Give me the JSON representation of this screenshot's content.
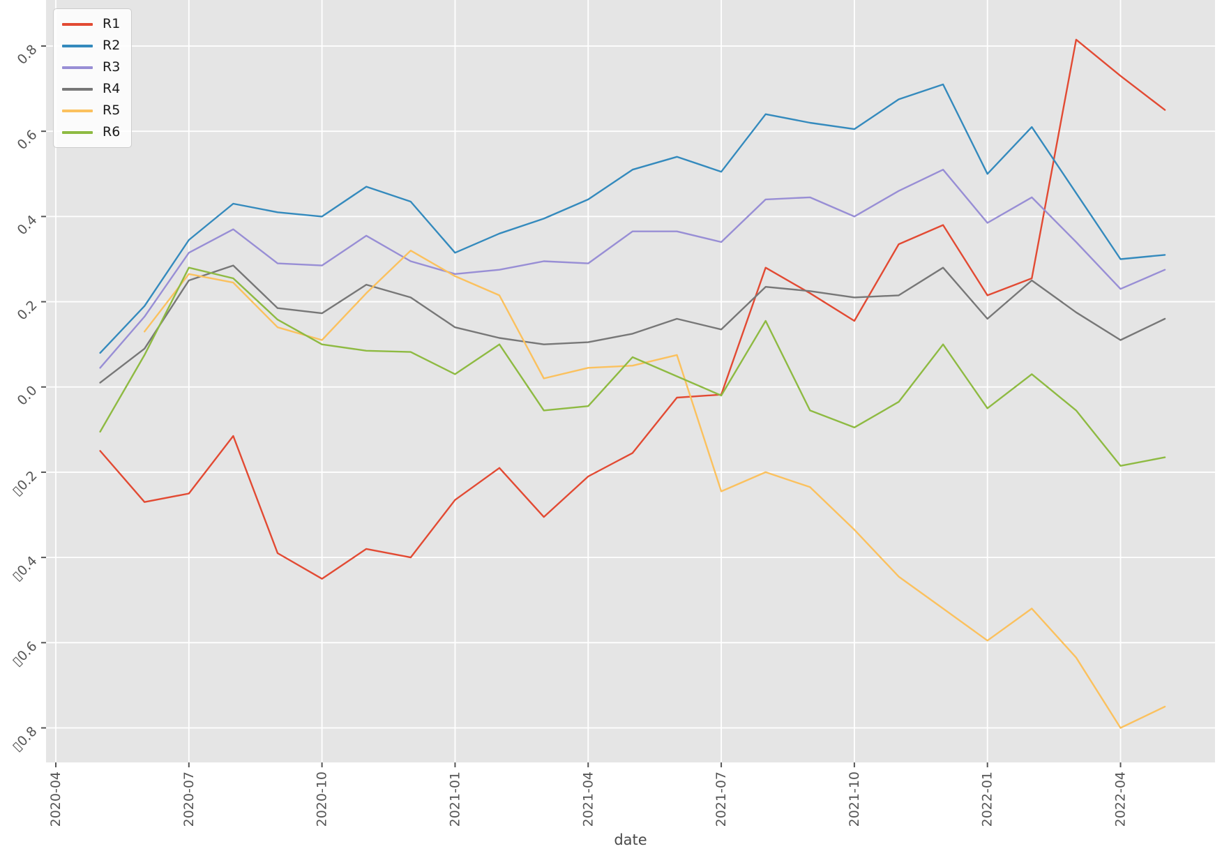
{
  "chart_data": {
    "type": "line",
    "title": "",
    "xlabel": "date",
    "ylabel": "",
    "grid": true,
    "legend_position": "upper left",
    "plot_background": "#E5E5E5",
    "gridline_color": "#FFFFFF",
    "tick_color": "#555555",
    "x": [
      "2020-05",
      "2020-06",
      "2020-07",
      "2020-08",
      "2020-09",
      "2020-10",
      "2020-11",
      "2020-12",
      "2021-01",
      "2021-02",
      "2021-03",
      "2021-04",
      "2021-05",
      "2021-06",
      "2021-07",
      "2021-08",
      "2021-09",
      "2021-10",
      "2021-11",
      "2021-12",
      "2022-01",
      "2022-02",
      "2022-03",
      "2022-04",
      "2022-05"
    ],
    "x_tick_labels": [
      "2020-04",
      "2020-07",
      "2020-10",
      "2021-01",
      "2021-04",
      "2021-07",
      "2021-10",
      "2022-01",
      "2022-04"
    ],
    "x_tick_month_index": [
      0,
      3,
      6,
      9,
      12,
      15,
      18,
      21,
      24
    ],
    "y_tick_values": [
      0.8,
      0.6,
      0.4,
      0.2,
      0.0,
      -0.2,
      -0.4,
      -0.6,
      -0.8
    ],
    "y_tick_labels": [
      "0.8",
      "0.6",
      "0.4",
      "0.2",
      "0.0",
      "▯0.2",
      "▯0.4",
      "▯0.6",
      "▯0.8"
    ],
    "ylim": [
      -0.881,
      0.908
    ],
    "series": [
      {
        "name": "R1",
        "color": "#E24A33",
        "values": [
          -0.15,
          -0.27,
          -0.25,
          -0.115,
          -0.39,
          -0.45,
          -0.38,
          -0.4,
          -0.265,
          -0.19,
          -0.305,
          -0.21,
          -0.155,
          -0.025,
          -0.018,
          0.28,
          0.22,
          0.155,
          0.335,
          0.38,
          0.215,
          0.255,
          0.815,
          0.73,
          0.65
        ]
      },
      {
        "name": "R2",
        "color": "#348ABD",
        "values": [
          0.08,
          0.19,
          0.345,
          0.43,
          0.41,
          0.4,
          0.47,
          0.435,
          0.315,
          0.36,
          0.395,
          0.44,
          0.51,
          0.54,
          0.505,
          0.64,
          0.62,
          0.605,
          0.675,
          0.71,
          0.5,
          0.61,
          0.455,
          0.3,
          0.31
        ]
      },
      {
        "name": "R3",
        "color": "#988ED5",
        "values": [
          0.045,
          0.165,
          0.315,
          0.37,
          0.29,
          0.285,
          0.355,
          0.295,
          0.265,
          0.275,
          0.295,
          0.29,
          0.365,
          0.365,
          0.34,
          0.44,
          0.445,
          0.4,
          0.46,
          0.51,
          0.385,
          0.445,
          0.34,
          0.23,
          0.275
        ]
      },
      {
        "name": "R4",
        "color": "#777777",
        "values": [
          0.01,
          0.09,
          0.25,
          0.285,
          0.185,
          0.173,
          0.24,
          0.21,
          0.14,
          0.115,
          0.1,
          0.105,
          0.125,
          0.16,
          0.135,
          0.235,
          0.225,
          0.21,
          0.215,
          0.28,
          0.16,
          0.25,
          0.175,
          0.11,
          0.16
        ]
      },
      {
        "name": "R5",
        "color": "#FBC15E",
        "values": [
          null,
          0.13,
          0.265,
          0.245,
          0.14,
          0.11,
          0.22,
          0.32,
          0.26,
          0.215,
          0.02,
          0.045,
          0.05,
          0.075,
          -0.245,
          -0.2,
          -0.235,
          -0.335,
          -0.445,
          -0.52,
          -0.595,
          -0.52,
          -0.635,
          -0.8,
          -0.75
        ]
      },
      {
        "name": "R6",
        "color": "#8EBA42",
        "values": [
          -0.105,
          0.075,
          0.28,
          0.255,
          0.158,
          0.1,
          0.085,
          0.082,
          0.03,
          0.1,
          -0.055,
          -0.045,
          0.07,
          0.025,
          -0.02,
          0.155,
          -0.055,
          -0.095,
          -0.035,
          0.1,
          -0.05,
          0.03,
          -0.055,
          -0.185,
          -0.165
        ]
      }
    ]
  }
}
